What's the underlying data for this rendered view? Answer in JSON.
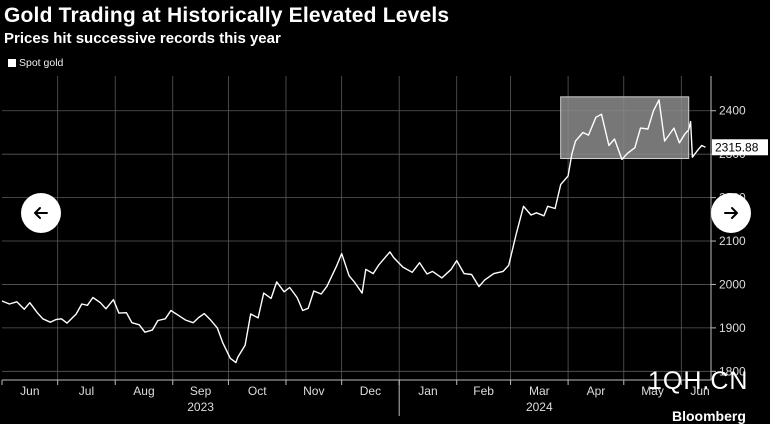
{
  "header": {
    "title": "Gold Trading at Historically Elevated Levels",
    "subtitle": "Prices hit successive records this year"
  },
  "watermark": "1QH.CN",
  "brand": "Bloomberg",
  "nav": {
    "prev_icon": "arrow-left-icon",
    "next_icon": "arrow-right-icon"
  },
  "chart_data": {
    "type": "line",
    "title": "Gold Trading at Historically Elevated Levels",
    "subtitle": "Prices hit successive records this year",
    "legend": [
      "Spot gold"
    ],
    "legend_position": "top-left",
    "grid": true,
    "line_color": "#ffffff",
    "last_value_label": "2315.88",
    "highlight_box": {
      "x_start": "2024-03-28",
      "x_end": "2024-06-05",
      "y_low": 2290,
      "y_high": 2432,
      "fill": "#8c8c8c"
    },
    "ylim": [
      1780,
      2480
    ],
    "y_ticks": [
      1800,
      1900,
      2000,
      2100,
      2200,
      2300,
      2400
    ],
    "x_tick_labels": [
      "Jun",
      "Jul",
      "Aug",
      "Sep",
      "Oct",
      "Nov",
      "Dec",
      "Jan",
      "Feb",
      "Mar",
      "Apr",
      "May",
      "Jun"
    ],
    "year_labels": [
      {
        "label": "2023",
        "month": "Sep"
      },
      {
        "label": "2024",
        "month": "Mar"
      }
    ],
    "series": [
      {
        "name": "Spot gold",
        "points": [
          [
            "2023-06-01",
            1962
          ],
          [
            "2023-06-05",
            1955
          ],
          [
            "2023-06-09",
            1960
          ],
          [
            "2023-06-13",
            1943
          ],
          [
            "2023-06-16",
            1958
          ],
          [
            "2023-06-20",
            1935
          ],
          [
            "2023-06-23",
            1921
          ],
          [
            "2023-06-27",
            1913
          ],
          [
            "2023-06-30",
            1919
          ],
          [
            "2023-07-03",
            1921
          ],
          [
            "2023-07-06",
            1911
          ],
          [
            "2023-07-11",
            1932
          ],
          [
            "2023-07-14",
            1955
          ],
          [
            "2023-07-17",
            1952
          ],
          [
            "2023-07-20",
            1970
          ],
          [
            "2023-07-24",
            1958
          ],
          [
            "2023-07-27",
            1944
          ],
          [
            "2023-07-31",
            1965
          ],
          [
            "2023-08-03",
            1934
          ],
          [
            "2023-08-07",
            1935
          ],
          [
            "2023-08-10",
            1912
          ],
          [
            "2023-08-14",
            1907
          ],
          [
            "2023-08-17",
            1890
          ],
          [
            "2023-08-21",
            1895
          ],
          [
            "2023-08-24",
            1917
          ],
          [
            "2023-08-28",
            1921
          ],
          [
            "2023-08-31",
            1940
          ],
          [
            "2023-09-05",
            1926
          ],
          [
            "2023-09-08",
            1918
          ],
          [
            "2023-09-12",
            1912
          ],
          [
            "2023-09-15",
            1924
          ],
          [
            "2023-09-18",
            1933
          ],
          [
            "2023-09-21",
            1920
          ],
          [
            "2023-09-25",
            1900
          ],
          [
            "2023-09-28",
            1865
          ],
          [
            "2023-10-02",
            1830
          ],
          [
            "2023-10-05",
            1820
          ],
          [
            "2023-10-06",
            1832
          ],
          [
            "2023-10-10",
            1860
          ],
          [
            "2023-10-13",
            1932
          ],
          [
            "2023-10-17",
            1923
          ],
          [
            "2023-10-20",
            1980
          ],
          [
            "2023-10-24",
            1968
          ],
          [
            "2023-10-27",
            2006
          ],
          [
            "2023-10-31",
            1983
          ],
          [
            "2023-11-03",
            1993
          ],
          [
            "2023-11-07",
            1970
          ],
          [
            "2023-11-10",
            1940
          ],
          [
            "2023-11-13",
            1945
          ],
          [
            "2023-11-16",
            1985
          ],
          [
            "2023-11-20",
            1978
          ],
          [
            "2023-11-23",
            1995
          ],
          [
            "2023-11-28",
            2040
          ],
          [
            "2023-12-01",
            2071
          ],
          [
            "2023-12-05",
            2020
          ],
          [
            "2023-12-08",
            2005
          ],
          [
            "2023-12-12",
            1980
          ],
          [
            "2023-12-14",
            2035
          ],
          [
            "2023-12-18",
            2025
          ],
          [
            "2023-12-21",
            2045
          ],
          [
            "2023-12-27",
            2075
          ],
          [
            "2023-12-29",
            2062
          ],
          [
            "2024-01-03",
            2040
          ],
          [
            "2024-01-08",
            2028
          ],
          [
            "2024-01-12",
            2050
          ],
          [
            "2024-01-16",
            2024
          ],
          [
            "2024-01-19",
            2030
          ],
          [
            "2024-01-24",
            2015
          ],
          [
            "2024-01-29",
            2035
          ],
          [
            "2024-02-01",
            2055
          ],
          [
            "2024-02-05",
            2025
          ],
          [
            "2024-02-09",
            2023
          ],
          [
            "2024-02-13",
            1995
          ],
          [
            "2024-02-16",
            2010
          ],
          [
            "2024-02-21",
            2025
          ],
          [
            "2024-02-26",
            2030
          ],
          [
            "2024-02-29",
            2044
          ],
          [
            "2024-03-04",
            2115
          ],
          [
            "2024-03-08",
            2180
          ],
          [
            "2024-03-12",
            2160
          ],
          [
            "2024-03-15",
            2165
          ],
          [
            "2024-03-19",
            2158
          ],
          [
            "2024-03-21",
            2180
          ],
          [
            "2024-03-25",
            2175
          ],
          [
            "2024-03-28",
            2230
          ],
          [
            "2024-04-01",
            2250
          ],
          [
            "2024-04-03",
            2300
          ],
          [
            "2024-04-05",
            2330
          ],
          [
            "2024-04-09",
            2350
          ],
          [
            "2024-04-12",
            2344
          ],
          [
            "2024-04-16",
            2385
          ],
          [
            "2024-04-19",
            2392
          ],
          [
            "2024-04-23",
            2320
          ],
          [
            "2024-04-26",
            2335
          ],
          [
            "2024-04-30",
            2288
          ],
          [
            "2024-05-03",
            2302
          ],
          [
            "2024-05-07",
            2315
          ],
          [
            "2024-05-10",
            2360
          ],
          [
            "2024-05-14",
            2358
          ],
          [
            "2024-05-17",
            2400
          ],
          [
            "2024-05-20",
            2425
          ],
          [
            "2024-05-23",
            2330
          ],
          [
            "2024-05-28",
            2360
          ],
          [
            "2024-05-31",
            2326
          ],
          [
            "2024-06-03",
            2347
          ],
          [
            "2024-06-05",
            2356
          ],
          [
            "2024-06-06",
            2375
          ],
          [
            "2024-06-07",
            2293
          ],
          [
            "2024-06-10",
            2310
          ],
          [
            "2024-06-12",
            2320
          ],
          [
            "2024-06-14",
            2315.88
          ]
        ]
      }
    ]
  }
}
